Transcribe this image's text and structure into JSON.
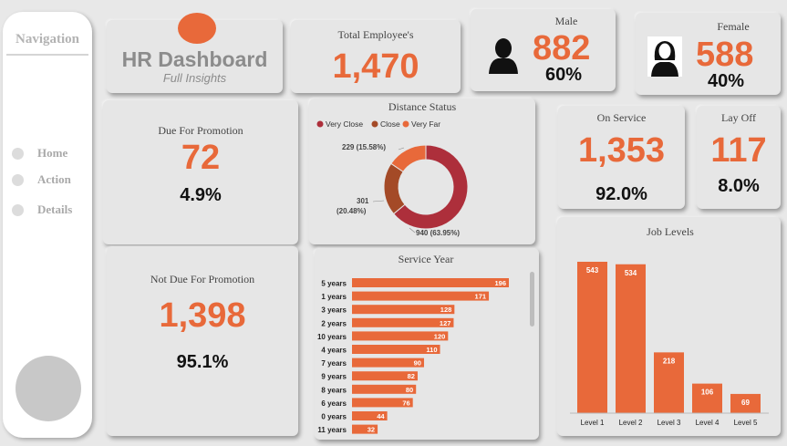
{
  "nav": {
    "title": "Navigation",
    "items": [
      {
        "label": "Home"
      },
      {
        "label": "Action"
      },
      {
        "label": "Details"
      }
    ]
  },
  "header": {
    "title": "HR Dashboard",
    "subtitle": "Full Insights"
  },
  "total": {
    "label": "Total Employee's",
    "value": "1,470"
  },
  "male": {
    "label": "Male",
    "value": "882",
    "pct": "60%"
  },
  "female": {
    "label": "Female",
    "value": "588",
    "pct": "40%"
  },
  "due": {
    "label": "Due For Promotion",
    "value": "72",
    "pct": "4.9%"
  },
  "notdue": {
    "label": "Not Due For Promotion",
    "value": "1,398",
    "pct": "95.1%"
  },
  "onservice": {
    "label": "On Service",
    "value": "1,353",
    "pct": "92.0%"
  },
  "layoff": {
    "label": "Lay Off",
    "value": "117",
    "pct": "8.0%"
  },
  "colors": {
    "accent": "#e8693a",
    "dark_red": "#ad2f3b",
    "brown": "#a44a27",
    "card": "#e6e6e6"
  },
  "chart_data": [
    {
      "type": "pie",
      "title": "Distance Status",
      "legend": [
        "Very Close",
        "Close",
        "Very Far"
      ],
      "legend_position": "top",
      "values": [
        940,
        301,
        229
      ],
      "data_labels": [
        "940 (63.95%)",
        "301 (20.48%)",
        "229 (15.58%)"
      ],
      "colors": [
        "#ad2f3b",
        "#a44a27",
        "#e8693a"
      ],
      "donut": true
    },
    {
      "type": "bar",
      "orientation": "horizontal",
      "title": "Service Year",
      "categories": [
        "5 years",
        "1 years",
        "3 years",
        "2 years",
        "10 years",
        "4 years",
        "7 years",
        "9 years",
        "8 years",
        "6 years",
        "0 years",
        "11 years"
      ],
      "values": [
        196,
        171,
        128,
        127,
        120,
        110,
        90,
        82,
        80,
        76,
        44,
        32
      ],
      "color": "#e8693a"
    },
    {
      "type": "bar",
      "title": "Job Levels",
      "categories": [
        "Level 1",
        "Level 2",
        "Level 3",
        "Level 4",
        "Level 5"
      ],
      "values": [
        543,
        534,
        218,
        106,
        69
      ],
      "color": "#e8693a"
    }
  ]
}
